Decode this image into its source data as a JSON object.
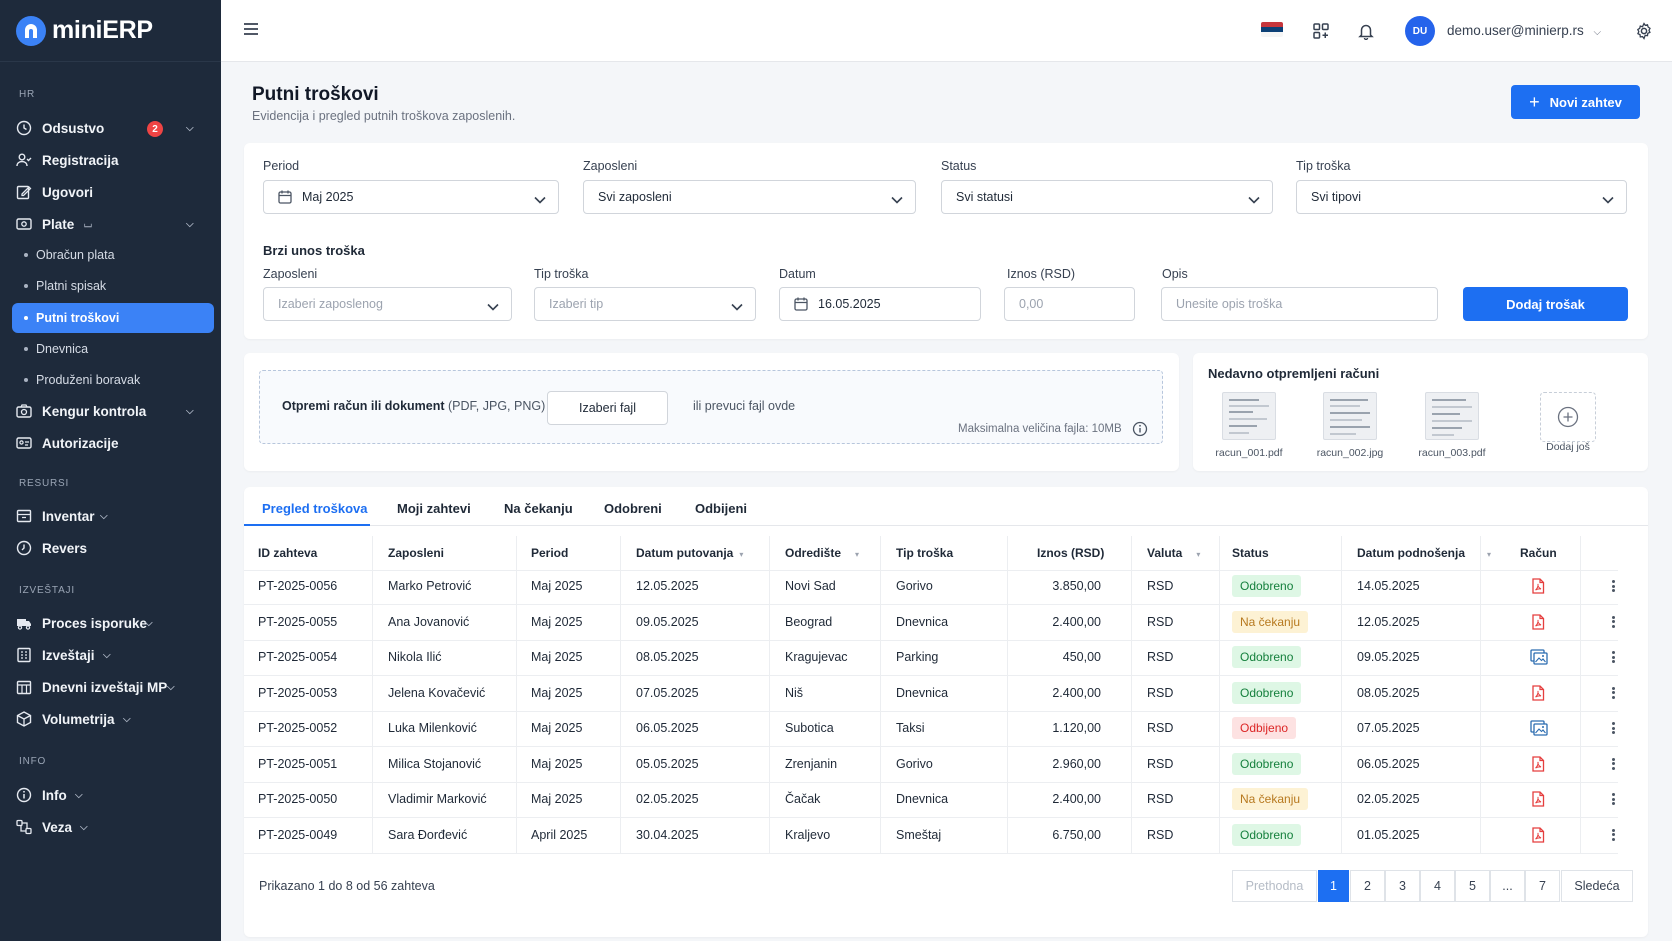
{
  "brand": {
    "name": "miniERP"
  },
  "sidebar": {
    "sections": [
      "HR",
      "RESURSI",
      "IZVEŠTAJI",
      "INFO"
    ],
    "items": {
      "odsustvo": {
        "label": "Odsustvo",
        "badge": "2"
      },
      "registracija": {
        "label": "Registracija"
      },
      "ugovori": {
        "label": "Ugovori"
      },
      "plate": {
        "label": "Plate"
      },
      "kengur": {
        "label": "Kengur kontrola"
      },
      "autorizacije": {
        "label": "Autorizacije"
      },
      "inventar": {
        "label": "Inventar"
      },
      "revers": {
        "label": "Revers"
      },
      "proces": {
        "label": "Proces isporuke"
      },
      "izvestaji": {
        "label": "Izveštaji"
      },
      "dnevni": {
        "label": "Dnevni izveštaji MP"
      },
      "volumetrija": {
        "label": "Volumetrija"
      },
      "info": {
        "label": "Info"
      },
      "veza": {
        "label": "Veza"
      }
    },
    "plate_sub": [
      "Obračun plata",
      "Platni spisak",
      "Putni troškovi",
      "Dnevnica",
      "Produženi boravak"
    ]
  },
  "topbar": {
    "user_initials": "DU",
    "user_email": "demo.user@minierp.rs"
  },
  "page": {
    "title": "Putni troškovi",
    "subtitle": "Evidencija i pregled putnih troškova zaposlenih.",
    "new_button": "Novi zahtev"
  },
  "filters": {
    "period": {
      "label": "Period",
      "value": "Maj 2025"
    },
    "employee": {
      "label": "Zaposleni",
      "value": "Svi zaposleni"
    },
    "status": {
      "label": "Status",
      "value": "Svi statusi"
    },
    "type": {
      "label": "Tip troška",
      "value": "Svi tipovi"
    }
  },
  "quick_entry": {
    "title": "Brzi unos troška",
    "employee": {
      "label": "Zaposleni",
      "placeholder": "Izaberi zaposlenog"
    },
    "type": {
      "label": "Tip troška",
      "placeholder": "Izaberi tip"
    },
    "date": {
      "label": "Datum",
      "value": "16.05.2025"
    },
    "amount": {
      "label": "Iznos (RSD)",
      "placeholder": "0,00"
    },
    "description": {
      "label": "Opis",
      "placeholder": "Unesite opis troška"
    },
    "submit": "Dodaj trošak"
  },
  "upload": {
    "title": "Otpremi račun ili dokument",
    "formats": "(PDF, JPG, PNG)",
    "choose": "Izaberi fajl",
    "drop": "ili prevuci fajl ovde",
    "max_size": "Maksimalna veličina fajla: 10MB"
  },
  "recent": {
    "title": "Nedavno otpremljeni računi",
    "files": [
      "racun_001.pdf",
      "racun_002.jpg",
      "racun_003.pdf"
    ],
    "add_more": "Dodaj još"
  },
  "tabs": [
    "Pregled troškova",
    "Moji zahtevi",
    "Na čekanju",
    "Odobreni",
    "Odbijeni"
  ],
  "table": {
    "headers": [
      "ID zahteva",
      "Zaposleni",
      "Period",
      "Datum putovanja",
      "Odredište",
      "Tip troška",
      "Iznos (RSD)",
      "Valuta",
      "Status",
      "Datum podnošenja",
      "Račun"
    ],
    "rows": [
      {
        "id": "PT-2025-0056",
        "employee": "Marko Petrović",
        "period": "Maj 2025",
        "travel_date": "12.05.2025",
        "destination": "Novi Sad",
        "type": "Gorivo",
        "amount": "3.850,00",
        "currency": "RSD",
        "status": "Odobreno",
        "status_kind": "ok",
        "submitted": "14.05.2025",
        "receipt": "pdf"
      },
      {
        "id": "PT-2025-0055",
        "employee": "Ana Jovanović",
        "period": "Maj 2025",
        "travel_date": "09.05.2025",
        "destination": "Beograd",
        "type": "Dnevnica",
        "amount": "2.400,00",
        "currency": "RSD",
        "status": "Na čekanju",
        "status_kind": "wait",
        "submitted": "12.05.2025",
        "receipt": "pdf"
      },
      {
        "id": "PT-2025-0054",
        "employee": "Nikola Ilić",
        "period": "Maj 2025",
        "travel_date": "08.05.2025",
        "destination": "Kragujevac",
        "type": "Parking",
        "amount": "450,00",
        "currency": "RSD",
        "status": "Odobreno",
        "status_kind": "ok",
        "submitted": "09.05.2025",
        "receipt": "image"
      },
      {
        "id": "PT-2025-0053",
        "employee": "Jelena Kovačević",
        "period": "Maj 2025",
        "travel_date": "07.05.2025",
        "destination": "Niš",
        "type": "Dnevnica",
        "amount": "2.400,00",
        "currency": "RSD",
        "status": "Odobreno",
        "status_kind": "ok",
        "submitted": "08.05.2025",
        "receipt": "pdf"
      },
      {
        "id": "PT-2025-0052",
        "employee": "Luka Milenković",
        "period": "Maj 2025",
        "travel_date": "06.05.2025",
        "destination": "Subotica",
        "type": "Taksi",
        "amount": "1.120,00",
        "currency": "RSD",
        "status": "Odbijeno",
        "status_kind": "rej",
        "submitted": "07.05.2025",
        "receipt": "image"
      },
      {
        "id": "PT-2025-0051",
        "employee": "Milica Stojanović",
        "period": "Maj 2025",
        "travel_date": "05.05.2025",
        "destination": "Zrenjanin",
        "type": "Gorivo",
        "amount": "2.960,00",
        "currency": "RSD",
        "status": "Odobreno",
        "status_kind": "ok",
        "submitted": "06.05.2025",
        "receipt": "pdf"
      },
      {
        "id": "PT-2025-0050",
        "employee": "Vladimir Marković",
        "period": "Maj 2025",
        "travel_date": "02.05.2025",
        "destination": "Čačak",
        "type": "Dnevnica",
        "amount": "2.400,00",
        "currency": "RSD",
        "status": "Na čekanju",
        "status_kind": "wait",
        "submitted": "02.05.2025",
        "receipt": "pdf"
      },
      {
        "id": "PT-2025-0049",
        "employee": "Sara Đorđević",
        "period": "April 2025",
        "travel_date": "30.04.2025",
        "destination": "Kraljevo",
        "type": "Smeštaj",
        "amount": "6.750,00",
        "currency": "RSD",
        "status": "Odobreno",
        "status_kind": "ok",
        "submitted": "01.05.2025",
        "receipt": "pdf"
      }
    ]
  },
  "pagination": {
    "summary": "Prikazano 1 do 8 od 56 zahteva",
    "prev": "Prethodna",
    "pages": [
      "1",
      "2",
      "3",
      "4",
      "5",
      "...",
      "7"
    ],
    "next": "Sledeća"
  },
  "colors": {
    "accent": "#1d6ff2",
    "sidebar_bg": "#1e2a3b",
    "pdf_icon": "#e53e3e",
    "image_icon": "#2b6cb0"
  }
}
